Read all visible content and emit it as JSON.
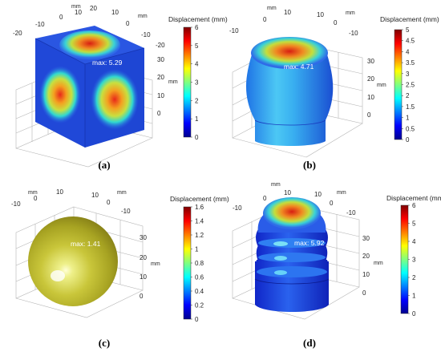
{
  "panels": [
    {
      "letter": "(a)",
      "colorbar": {
        "title": "Displacement (mm)",
        "ticks": [
          "6",
          "5",
          "4",
          "3",
          "2",
          "1",
          "0"
        ]
      },
      "max_label": "max: 5.29",
      "axis_unit": "mm",
      "axis_ticks": {
        "left": [
          "-20",
          "-10",
          "0",
          "10",
          "20"
        ],
        "right": [
          "10",
          "0",
          "-10",
          "-20"
        ],
        "vertical": [
          "30",
          "20",
          "10",
          "0"
        ]
      }
    },
    {
      "letter": "(b)",
      "colorbar": {
        "title": "Displacement (mm)",
        "ticks": [
          "5",
          "4.5",
          "4",
          "3.5",
          "3",
          "2.5",
          "2",
          "1.5",
          "1",
          "0.5",
          "0"
        ]
      },
      "max_label": "max: 4.71",
      "axis_unit": "mm",
      "axis_ticks": {
        "left": [
          "-10",
          "0",
          "10"
        ],
        "right": [
          "10",
          "0",
          "-10"
        ],
        "vertical": [
          "30",
          "20",
          "10",
          "0"
        ]
      }
    },
    {
      "letter": "(c)",
      "colorbar": {
        "title": "Displacement (mm)",
        "ticks": [
          "1.6",
          "1.4",
          "1.2",
          "1",
          "0.8",
          "0.6",
          "0.4",
          "0.2",
          "0"
        ]
      },
      "max_label": "max: 1.41",
      "axis_unit": "mm",
      "axis_ticks": {
        "left": [
          "-10",
          "0",
          "10"
        ],
        "right": [
          "10",
          "0",
          "-10"
        ],
        "vertical": [
          "30",
          "20",
          "10",
          "0"
        ]
      }
    },
    {
      "letter": "(d)",
      "colorbar": {
        "title": "Displacement (mm)",
        "ticks": [
          "6",
          "5",
          "4",
          "3",
          "2",
          "1",
          "0"
        ]
      },
      "max_label": "max: 5.92",
      "axis_unit": "mm",
      "axis_ticks": {
        "left": [
          "-10",
          "0",
          "10"
        ],
        "right": [
          "10",
          "0",
          "-10"
        ],
        "vertical": [
          "30",
          "20",
          "10",
          "0"
        ]
      }
    }
  ]
}
